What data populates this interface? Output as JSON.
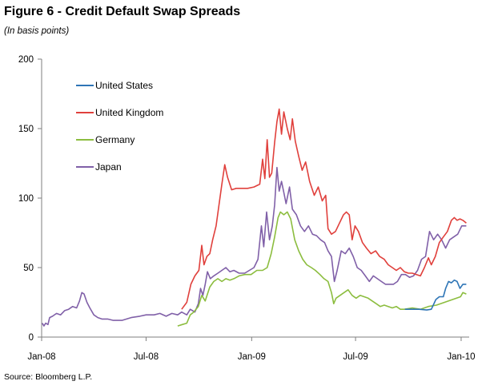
{
  "figure": {
    "title": "Figure 6 - Credit Default Swap Spreads",
    "subtitle": "(In basis points)",
    "source": "Source: Bloomberg L.P."
  },
  "chart_data": {
    "type": "line",
    "title": "Figure 6 - Credit Default Swap Spreads",
    "subtitle": "(In basis points)",
    "xlabel": "",
    "ylabel": "",
    "ylim": [
      0,
      200
    ],
    "yticks": [
      0,
      50,
      100,
      150,
      200
    ],
    "xlim": [
      "2008-01-01",
      "2010-01-15"
    ],
    "xtick_labels": [
      "Jan-08",
      "Jul-08",
      "Jan-09",
      "Jul-09",
      "Jan-10"
    ],
    "xtick_dates": [
      "2008-01-01",
      "2008-07-01",
      "2009-01-01",
      "2009-07-01",
      "2010-01-01"
    ],
    "grid": false,
    "legend_placement": "upper-left",
    "series": [
      {
        "name": "United States",
        "color": "#2e75b6",
        "points": [
          [
            "2009-09-25",
            20
          ],
          [
            "2009-10-20",
            20
          ],
          [
            "2009-11-02",
            19.5
          ],
          [
            "2009-11-10",
            20
          ],
          [
            "2009-11-18",
            27
          ],
          [
            "2009-11-24",
            29
          ],
          [
            "2009-12-01",
            29
          ],
          [
            "2009-12-05",
            35
          ],
          [
            "2009-12-10",
            40
          ],
          [
            "2009-12-15",
            39
          ],
          [
            "2009-12-20",
            41
          ],
          [
            "2009-12-25",
            40
          ],
          [
            "2009-12-30",
            35
          ],
          [
            "2010-01-04",
            38
          ],
          [
            "2010-01-10",
            38
          ]
        ]
      },
      {
        "name": "United Kingdom",
        "color": "#e0403c",
        "points": [
          [
            "2008-09-01",
            20
          ],
          [
            "2008-09-10",
            25
          ],
          [
            "2008-09-17",
            38
          ],
          [
            "2008-09-24",
            44
          ],
          [
            "2008-10-01",
            48
          ],
          [
            "2008-10-06",
            66
          ],
          [
            "2008-10-10",
            52
          ],
          [
            "2008-10-15",
            58
          ],
          [
            "2008-10-20",
            60
          ],
          [
            "2008-10-25",
            70
          ],
          [
            "2008-10-31",
            80
          ],
          [
            "2008-11-05",
            95
          ],
          [
            "2008-11-10",
            110
          ],
          [
            "2008-11-15",
            124
          ],
          [
            "2008-11-20",
            115
          ],
          [
            "2008-11-27",
            106
          ],
          [
            "2008-12-05",
            107
          ],
          [
            "2008-12-15",
            107
          ],
          [
            "2008-12-25",
            107
          ],
          [
            "2009-01-05",
            108
          ],
          [
            "2009-01-15",
            110
          ],
          [
            "2009-01-20",
            128
          ],
          [
            "2009-01-24",
            114
          ],
          [
            "2009-01-28",
            142
          ],
          [
            "2009-02-01",
            115
          ],
          [
            "2009-02-05",
            118
          ],
          [
            "2009-02-10",
            140
          ],
          [
            "2009-02-14",
            155
          ],
          [
            "2009-02-18",
            164
          ],
          [
            "2009-02-22",
            146
          ],
          [
            "2009-02-26",
            162
          ],
          [
            "2009-03-04",
            150
          ],
          [
            "2009-03-09",
            142
          ],
          [
            "2009-03-13",
            157
          ],
          [
            "2009-03-18",
            141
          ],
          [
            "2009-03-24",
            130
          ],
          [
            "2009-03-30",
            120
          ],
          [
            "2009-04-05",
            126
          ],
          [
            "2009-04-12",
            112
          ],
          [
            "2009-04-20",
            102
          ],
          [
            "2009-04-27",
            108
          ],
          [
            "2009-05-04",
            98
          ],
          [
            "2009-05-10",
            102
          ],
          [
            "2009-05-14",
            78
          ],
          [
            "2009-05-20",
            74
          ],
          [
            "2009-05-27",
            76
          ],
          [
            "2009-06-03",
            82
          ],
          [
            "2009-06-10",
            88
          ],
          [
            "2009-06-15",
            90
          ],
          [
            "2009-06-20",
            88
          ],
          [
            "2009-06-25",
            70
          ],
          [
            "2009-06-30",
            80
          ],
          [
            "2009-07-06",
            76
          ],
          [
            "2009-07-13",
            68
          ],
          [
            "2009-07-20",
            64
          ],
          [
            "2009-07-28",
            60
          ],
          [
            "2009-08-05",
            62
          ],
          [
            "2009-08-12",
            58
          ],
          [
            "2009-08-20",
            56
          ],
          [
            "2009-08-27",
            52
          ],
          [
            "2009-09-03",
            50
          ],
          [
            "2009-09-10",
            48
          ],
          [
            "2009-09-17",
            50
          ],
          [
            "2009-09-24",
            47
          ],
          [
            "2009-10-01",
            46
          ],
          [
            "2009-10-08",
            46
          ],
          [
            "2009-10-15",
            45
          ],
          [
            "2009-10-22",
            44
          ],
          [
            "2009-10-29",
            50
          ],
          [
            "2009-11-05",
            57
          ],
          [
            "2009-11-10",
            52
          ],
          [
            "2009-11-17",
            58
          ],
          [
            "2009-11-24",
            68
          ],
          [
            "2009-12-01",
            72
          ],
          [
            "2009-12-08",
            76
          ],
          [
            "2009-12-15",
            84
          ],
          [
            "2009-12-20",
            86
          ],
          [
            "2009-12-25",
            84
          ],
          [
            "2009-12-30",
            85
          ],
          [
            "2010-01-04",
            84
          ],
          [
            "2010-01-10",
            82
          ]
        ]
      },
      {
        "name": "Germany",
        "color": "#8cbd3f",
        "points": [
          [
            "2008-08-25",
            8
          ],
          [
            "2008-09-02",
            9
          ],
          [
            "2008-09-10",
            10
          ],
          [
            "2008-09-16",
            16
          ],
          [
            "2008-09-22",
            18
          ],
          [
            "2008-09-30",
            22
          ],
          [
            "2008-10-06",
            30
          ],
          [
            "2008-10-12",
            26
          ],
          [
            "2008-10-20",
            36
          ],
          [
            "2008-10-27",
            40
          ],
          [
            "2008-11-03",
            42
          ],
          [
            "2008-11-10",
            40
          ],
          [
            "2008-11-17",
            42
          ],
          [
            "2008-11-24",
            41
          ],
          [
            "2008-12-01",
            42
          ],
          [
            "2008-12-10",
            44
          ],
          [
            "2008-12-20",
            45
          ],
          [
            "2008-12-31",
            45
          ],
          [
            "2009-01-10",
            48
          ],
          [
            "2009-01-20",
            48
          ],
          [
            "2009-01-28",
            50
          ],
          [
            "2009-02-04",
            60
          ],
          [
            "2009-02-10",
            72
          ],
          [
            "2009-02-16",
            86
          ],
          [
            "2009-02-20",
            90
          ],
          [
            "2009-02-26",
            88
          ],
          [
            "2009-03-04",
            90
          ],
          [
            "2009-03-10",
            85
          ],
          [
            "2009-03-17",
            70
          ],
          [
            "2009-03-24",
            62
          ],
          [
            "2009-03-31",
            56
          ],
          [
            "2009-04-07",
            52
          ],
          [
            "2009-04-15",
            50
          ],
          [
            "2009-04-22",
            48
          ],
          [
            "2009-04-30",
            45
          ],
          [
            "2009-05-07",
            42
          ],
          [
            "2009-05-14",
            40
          ],
          [
            "2009-05-20",
            32
          ],
          [
            "2009-05-24",
            24
          ],
          [
            "2009-05-28",
            28
          ],
          [
            "2009-06-04",
            30
          ],
          [
            "2009-06-11",
            32
          ],
          [
            "2009-06-18",
            34
          ],
          [
            "2009-06-25",
            30
          ],
          [
            "2009-07-02",
            28
          ],
          [
            "2009-07-09",
            30
          ],
          [
            "2009-07-16",
            29
          ],
          [
            "2009-07-23",
            28
          ],
          [
            "2009-07-30",
            26
          ],
          [
            "2009-08-06",
            24
          ],
          [
            "2009-08-13",
            22
          ],
          [
            "2009-08-20",
            23
          ],
          [
            "2009-08-27",
            22
          ],
          [
            "2009-09-03",
            21
          ],
          [
            "2009-09-10",
            22
          ],
          [
            "2009-09-17",
            20
          ],
          [
            "2009-09-24",
            20
          ],
          [
            "2009-10-08",
            21
          ],
          [
            "2009-10-22",
            20
          ],
          [
            "2009-11-05",
            22
          ],
          [
            "2009-11-19",
            23
          ],
          [
            "2009-12-03",
            25
          ],
          [
            "2009-12-17",
            27
          ],
          [
            "2009-12-24",
            28
          ],
          [
            "2009-12-31",
            29
          ],
          [
            "2010-01-04",
            32
          ],
          [
            "2010-01-10",
            31
          ]
        ]
      },
      {
        "name": "Japan",
        "color": "#8060a8",
        "points": [
          [
            "2008-01-02",
            10
          ],
          [
            "2008-01-05",
            8
          ],
          [
            "2008-01-08",
            10
          ],
          [
            "2008-01-12",
            9
          ],
          [
            "2008-01-15",
            14
          ],
          [
            "2008-01-20",
            15
          ],
          [
            "2008-01-27",
            17
          ],
          [
            "2008-02-03",
            16
          ],
          [
            "2008-02-10",
            19
          ],
          [
            "2008-02-17",
            20
          ],
          [
            "2008-02-24",
            22
          ],
          [
            "2008-03-02",
            21
          ],
          [
            "2008-03-07",
            26
          ],
          [
            "2008-03-11",
            32
          ],
          [
            "2008-03-15",
            31
          ],
          [
            "2008-03-20",
            25
          ],
          [
            "2008-03-25",
            21
          ],
          [
            "2008-04-01",
            16
          ],
          [
            "2008-04-08",
            14
          ],
          [
            "2008-04-15",
            13
          ],
          [
            "2008-04-25",
            13
          ],
          [
            "2008-05-05",
            12
          ],
          [
            "2008-05-20",
            12
          ],
          [
            "2008-06-05",
            14
          ],
          [
            "2008-06-20",
            15
          ],
          [
            "2008-07-01",
            16
          ],
          [
            "2008-07-15",
            16
          ],
          [
            "2008-07-25",
            17
          ],
          [
            "2008-08-05",
            15
          ],
          [
            "2008-08-15",
            17
          ],
          [
            "2008-08-25",
            16
          ],
          [
            "2008-09-01",
            18
          ],
          [
            "2008-09-10",
            16
          ],
          [
            "2008-09-16",
            20
          ],
          [
            "2008-09-24",
            18
          ],
          [
            "2008-09-30",
            24
          ],
          [
            "2008-10-04",
            35
          ],
          [
            "2008-10-08",
            30
          ],
          [
            "2008-10-12",
            38
          ],
          [
            "2008-10-16",
            47
          ],
          [
            "2008-10-21",
            42
          ],
          [
            "2008-10-27",
            44
          ],
          [
            "2008-11-03",
            46
          ],
          [
            "2008-11-10",
            48
          ],
          [
            "2008-11-17",
            50
          ],
          [
            "2008-11-24",
            47
          ],
          [
            "2008-12-01",
            48
          ],
          [
            "2008-12-10",
            46
          ],
          [
            "2008-12-20",
            46
          ],
          [
            "2009-01-05",
            50
          ],
          [
            "2009-01-12",
            56
          ],
          [
            "2009-01-18",
            80
          ],
          [
            "2009-01-22",
            65
          ],
          [
            "2009-01-27",
            90
          ],
          [
            "2009-02-01",
            70
          ],
          [
            "2009-02-06",
            80
          ],
          [
            "2009-02-10",
            95
          ],
          [
            "2009-02-14",
            122
          ],
          [
            "2009-02-18",
            105
          ],
          [
            "2009-02-22",
            112
          ],
          [
            "2009-02-26",
            104
          ],
          [
            "2009-03-02",
            96
          ],
          [
            "2009-03-08",
            108
          ],
          [
            "2009-03-13",
            92
          ],
          [
            "2009-03-20",
            88
          ],
          [
            "2009-03-27",
            80
          ],
          [
            "2009-04-03",
            76
          ],
          [
            "2009-04-10",
            80
          ],
          [
            "2009-04-17",
            74
          ],
          [
            "2009-04-24",
            73
          ],
          [
            "2009-05-01",
            70
          ],
          [
            "2009-05-08",
            68
          ],
          [
            "2009-05-14",
            62
          ],
          [
            "2009-05-20",
            58
          ],
          [
            "2009-05-25",
            40
          ],
          [
            "2009-05-30",
            48
          ],
          [
            "2009-06-06",
            62
          ],
          [
            "2009-06-13",
            60
          ],
          [
            "2009-06-20",
            64
          ],
          [
            "2009-06-27",
            58
          ],
          [
            "2009-07-04",
            50
          ],
          [
            "2009-07-11",
            48
          ],
          [
            "2009-07-18",
            44
          ],
          [
            "2009-07-25",
            40
          ],
          [
            "2009-08-01",
            44
          ],
          [
            "2009-08-08",
            42
          ],
          [
            "2009-08-15",
            40
          ],
          [
            "2009-08-22",
            38
          ],
          [
            "2009-08-29",
            38
          ],
          [
            "2009-09-05",
            38
          ],
          [
            "2009-09-12",
            40
          ],
          [
            "2009-09-19",
            45
          ],
          [
            "2009-09-26",
            45
          ],
          [
            "2009-10-03",
            43
          ],
          [
            "2009-10-10",
            44
          ],
          [
            "2009-10-17",
            48
          ],
          [
            "2009-10-24",
            56
          ],
          [
            "2009-10-31",
            58
          ],
          [
            "2009-11-07",
            76
          ],
          [
            "2009-11-14",
            70
          ],
          [
            "2009-11-21",
            74
          ],
          [
            "2009-11-28",
            70
          ],
          [
            "2009-12-05",
            64
          ],
          [
            "2009-12-12",
            70
          ],
          [
            "2009-12-19",
            72
          ],
          [
            "2009-12-26",
            74
          ],
          [
            "2010-01-02",
            80
          ],
          [
            "2010-01-10",
            80
          ]
        ]
      }
    ]
  }
}
